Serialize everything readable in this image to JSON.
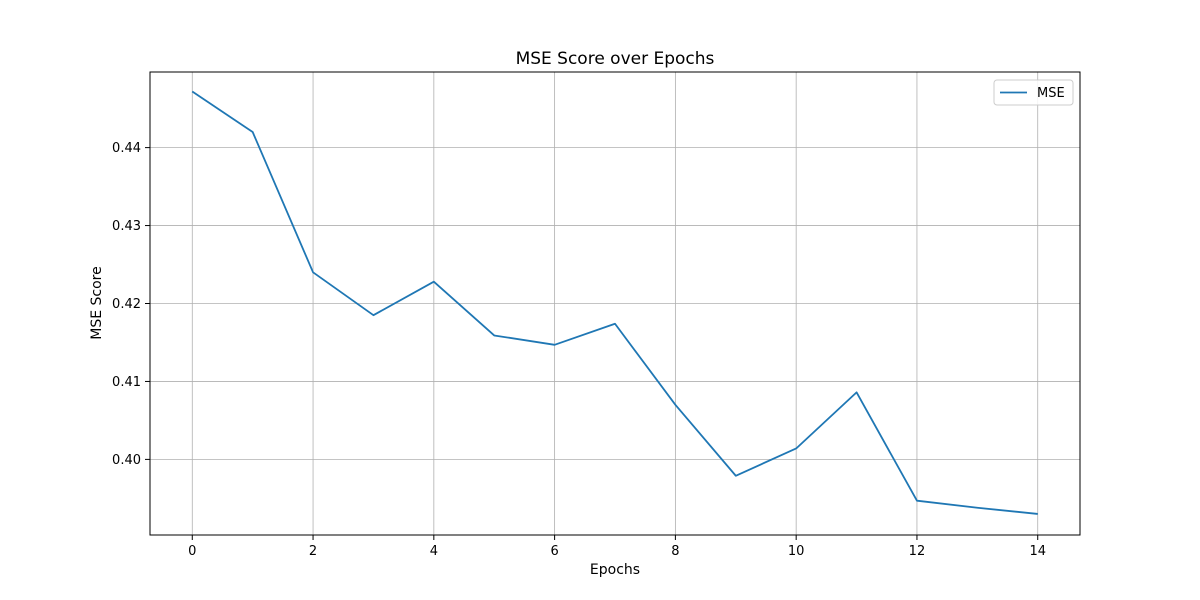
{
  "chart_data": {
    "type": "line",
    "title": "MSE Score over Epochs",
    "xlabel": "Epochs",
    "ylabel": "MSE Score",
    "x": [
      0,
      1,
      2,
      3,
      4,
      5,
      6,
      7,
      8,
      9,
      10,
      11,
      12,
      13,
      14
    ],
    "series": [
      {
        "name": "MSE",
        "color": "#1f77b4",
        "values": [
          0.4472,
          0.442,
          0.424,
          0.4185,
          0.4228,
          0.4159,
          0.4147,
          0.4174,
          0.407,
          0.3979,
          0.4014,
          0.4086,
          0.3947,
          0.3938,
          0.393
        ]
      }
    ],
    "xlim": [
      -0.7,
      14.7
    ],
    "ylim": [
      0.3903,
      0.4497
    ],
    "xticks": [
      0,
      2,
      4,
      6,
      8,
      10,
      12,
      14
    ],
    "xtick_labels": [
      "0",
      "2",
      "4",
      "6",
      "8",
      "10",
      "12",
      "14"
    ],
    "yticks": [
      0.4,
      0.41,
      0.42,
      0.43,
      0.44
    ],
    "ytick_labels": [
      "0.40",
      "0.41",
      "0.42",
      "0.43",
      "0.44"
    ],
    "grid": true,
    "legend_position": "top-right"
  }
}
